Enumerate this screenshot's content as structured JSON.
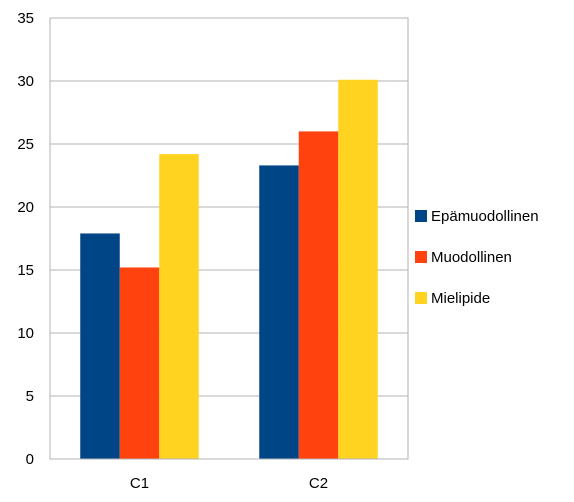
{
  "chart_data": {
    "type": "bar",
    "title": "",
    "xlabel": "",
    "ylabel": "",
    "categories": [
      "C1",
      "C2"
    ],
    "series": [
      {
        "name": "Epämuodollinen",
        "values": [
          17.9,
          23.3
        ],
        "color": "#004586"
      },
      {
        "name": "Muodollinen",
        "values": [
          15.2,
          26.0
        ],
        "color": "#ff420e"
      },
      {
        "name": "Mielipide",
        "values": [
          24.2,
          30.1
        ],
        "color": "#ffd320"
      }
    ],
    "ylim": [
      0,
      35
    ],
    "yticks": [
      "0",
      "5",
      "10",
      "15",
      "20",
      "25",
      "30",
      "35"
    ],
    "grid": true,
    "legend": "right"
  }
}
